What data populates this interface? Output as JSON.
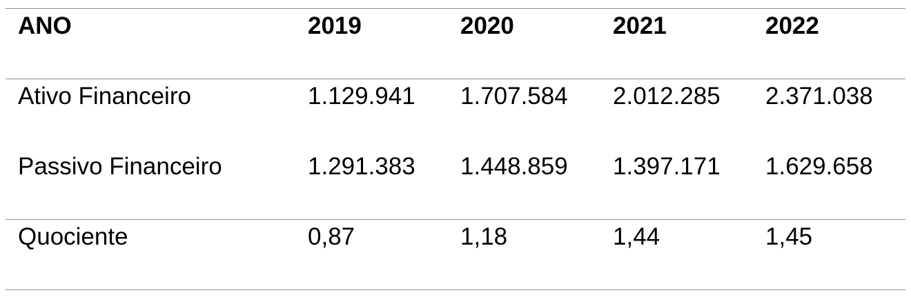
{
  "table": {
    "headers": [
      "ANO",
      "2019",
      "2020",
      "2021",
      "2022"
    ],
    "rows": [
      [
        "Ativo Financeiro",
        "1.129.941",
        "1.707.584",
        "2.012.285",
        "2.371.038"
      ],
      [
        "Passivo Financeiro",
        "1.291.383",
        "1.448.859",
        "1.397.171",
        "1.629.658"
      ],
      [
        "Quociente",
        "0,87",
        "1,18",
        "1,44",
        "1,45"
      ]
    ]
  },
  "colors": {
    "text": "#000000",
    "rule": "#8c8c8c",
    "background": "#ffffff"
  }
}
